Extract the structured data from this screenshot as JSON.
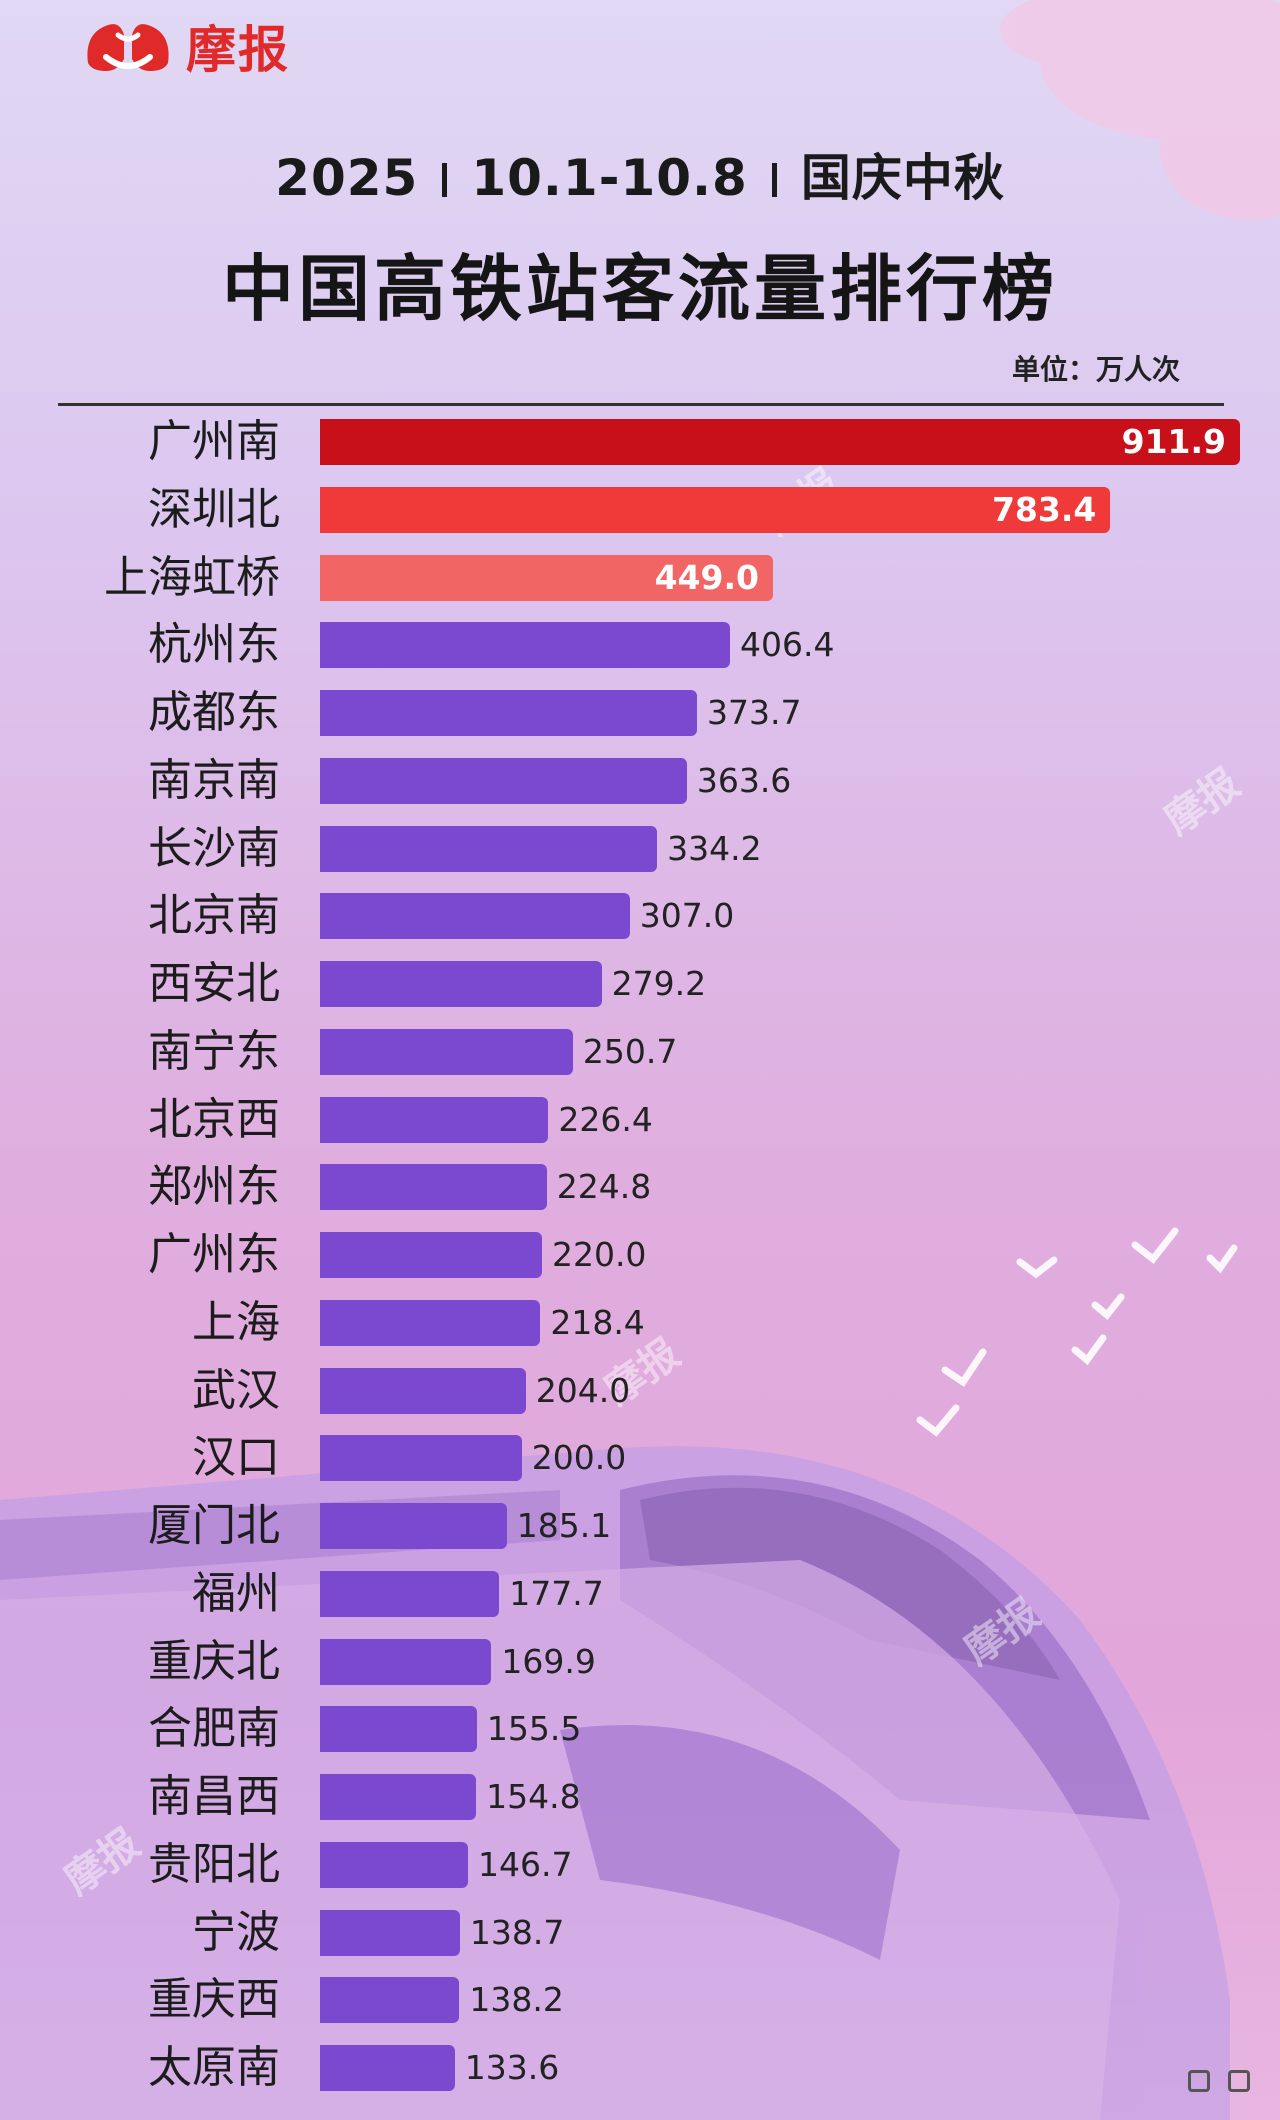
{
  "brand": {
    "name": "摩报",
    "logo_icon": "moba-logo-icon"
  },
  "header": {
    "subtitle_parts": [
      "2025",
      "10.1-10.8",
      "国庆中秋"
    ],
    "title": "中国高铁站客流量排行榜",
    "unit": "单位：万人次"
  },
  "watermark": "摩报",
  "colors": {
    "top1": "#c8101a",
    "top2": "#f03a3a",
    "top3": "#f26565",
    "rest": "#7b48d0"
  },
  "chart_data": {
    "type": "bar",
    "orientation": "horizontal",
    "title": "中国高铁站客流量排行榜",
    "unit": "单位：万人次",
    "categories": [
      "广州南",
      "深圳北",
      "上海虹桥",
      "杭州东",
      "成都东",
      "南京南",
      "长沙南",
      "北京南",
      "西安北",
      "南宁东",
      "北京西",
      "郑州东",
      "广州东",
      "上海",
      "武汉",
      "汉口",
      "厦门北",
      "福州",
      "重庆北",
      "合肥南",
      "南昌西",
      "贵阳北",
      "宁波",
      "重庆西",
      "太原南"
    ],
    "values": [
      911.9,
      783.4,
      449.0,
      406.4,
      373.7,
      363.6,
      334.2,
      307.0,
      279.2,
      250.7,
      226.4,
      224.8,
      220.0,
      218.4,
      204.0,
      200.0,
      185.1,
      177.7,
      169.9,
      155.5,
      154.8,
      146.7,
      138.7,
      138.2,
      133.6
    ],
    "value_labels": [
      "911.9",
      "783.4",
      "449.0",
      "406.4",
      "373.7",
      "363.6",
      "334.2",
      "307.0",
      "279.2",
      "250.7",
      "226.4",
      "224.8",
      "220.0",
      "218.4",
      "204.0",
      "200.0",
      "185.1",
      "177.7",
      "169.9",
      "155.5",
      "154.8",
      "146.7",
      "138.7",
      "138.2",
      "133.6"
    ],
    "xlim": [
      0,
      911.9
    ],
    "grid": false,
    "legend": "none"
  }
}
